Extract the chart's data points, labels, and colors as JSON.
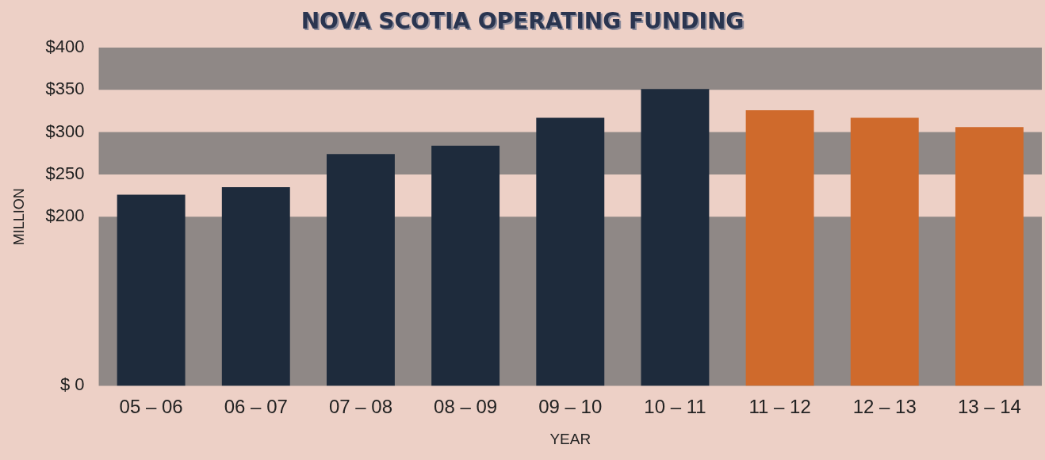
{
  "chart_data": {
    "type": "bar",
    "title": "NOVA SCOTIA OPERATING FUNDING",
    "xlabel": "YEAR",
    "ylabel": "MILLION",
    "categories": [
      "05 – 06",
      "06 – 07",
      "07 – 08",
      "08 – 09",
      "09 – 10",
      "10 – 11",
      "11 – 12",
      "12 – 13",
      "13 – 14"
    ],
    "values": [
      226,
      235,
      274,
      284,
      317,
      351,
      326,
      317,
      306
    ],
    "colors": [
      "#1e2b3c",
      "#1e2b3c",
      "#1e2b3c",
      "#1e2b3c",
      "#1e2b3c",
      "#1e2b3c",
      "#cf6a2c",
      "#cf6a2c",
      "#cf6a2c"
    ],
    "ylim": [
      0,
      400
    ],
    "yticks": [
      {
        "value": 0,
        "label": "$ 0"
      },
      {
        "value": 200,
        "label": "$200"
      },
      {
        "value": 250,
        "label": "$250"
      },
      {
        "value": 300,
        "label": "$300"
      },
      {
        "value": 350,
        "label": "$350"
      },
      {
        "value": 400,
        "label": "$400"
      }
    ],
    "bands": [
      {
        "axis": "y",
        "from": 0,
        "to": 200,
        "color": "#8f8886"
      },
      {
        "axis": "y",
        "from": 250,
        "to": 300,
        "color": "#8f8886"
      },
      {
        "axis": "y",
        "from": 350,
        "to": 400,
        "color": "#8f8886"
      }
    ],
    "grid": false,
    "legend": false
  }
}
